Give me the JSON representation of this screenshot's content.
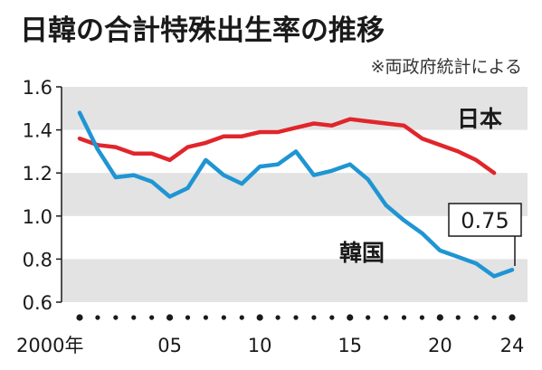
{
  "chart_data": {
    "type": "line",
    "title": "日韓の合計特殊出生率の推移",
    "source": "※両政府統計による",
    "x": [
      2000,
      2001,
      2002,
      2003,
      2004,
      2005,
      2006,
      2007,
      2008,
      2009,
      2010,
      2011,
      2012,
      2013,
      2014,
      2015,
      2016,
      2017,
      2018,
      2019,
      2020,
      2021,
      2022,
      2023,
      2024
    ],
    "x_tick_labels": [
      {
        "x": 2000,
        "label": "2000年"
      },
      {
        "x": 2005,
        "label": "05"
      },
      {
        "x": 2010,
        "label": "10"
      },
      {
        "x": 2015,
        "label": "15"
      },
      {
        "x": 2020,
        "label": "20"
      },
      {
        "x": 2024,
        "label": "24"
      }
    ],
    "ylim": [
      0.6,
      1.6
    ],
    "y_ticks": [
      "0.6",
      "0.8",
      "1.0",
      "1.2",
      "1.4",
      "1.6"
    ],
    "series": [
      {
        "name": "日本",
        "color": "#e0262b",
        "x": [
          2000,
          2001,
          2002,
          2003,
          2004,
          2005,
          2006,
          2007,
          2008,
          2009,
          2010,
          2011,
          2012,
          2013,
          2014,
          2015,
          2016,
          2017,
          2018,
          2019,
          2020,
          2021,
          2022,
          2023
        ],
        "values": [
          1.36,
          1.33,
          1.32,
          1.29,
          1.29,
          1.26,
          1.32,
          1.34,
          1.37,
          1.37,
          1.39,
          1.39,
          1.41,
          1.43,
          1.42,
          1.45,
          1.44,
          1.43,
          1.42,
          1.36,
          1.33,
          1.3,
          1.26,
          1.2
        ]
      },
      {
        "name": "韓国",
        "color": "#1f95d3",
        "x": [
          2000,
          2001,
          2002,
          2003,
          2004,
          2005,
          2006,
          2007,
          2008,
          2009,
          2010,
          2011,
          2012,
          2013,
          2014,
          2015,
          2016,
          2017,
          2018,
          2019,
          2020,
          2021,
          2022,
          2023,
          2024
        ],
        "values": [
          1.48,
          1.31,
          1.18,
          1.19,
          1.16,
          1.09,
          1.13,
          1.26,
          1.19,
          1.15,
          1.23,
          1.24,
          1.3,
          1.19,
          1.21,
          1.24,
          1.17,
          1.05,
          0.98,
          0.92,
          0.84,
          0.81,
          0.78,
          0.72,
          0.75
        ]
      }
    ],
    "callout": "0.75",
    "grid": "alternating horizontal bands"
  }
}
